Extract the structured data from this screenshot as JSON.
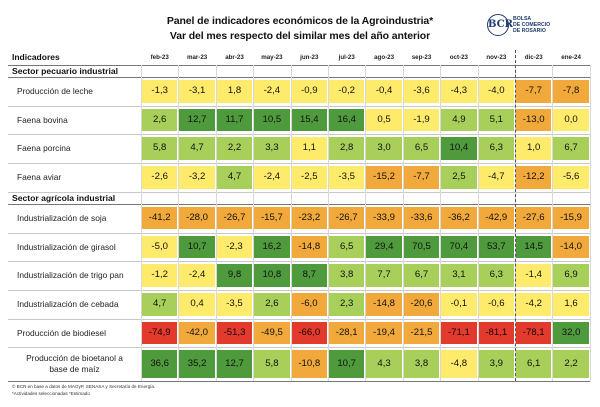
{
  "header": {
    "title_line1": "Panel de indicadores económicos de la Agroindustria*",
    "title_line2": "Var del mes respecto del similar mes del año anterior",
    "logo_seal": "BCR",
    "logo_line1": "BOLSA",
    "logo_line2": "DE COMERCIO",
    "logo_line3": "DE ROSARIO"
  },
  "chart_data": {
    "type": "table",
    "title": "Panel de indicadores económicos de la Agroindustria*",
    "subtitle": "Var del mes respecto del similar mes del año anterior",
    "column_header": "Indicadores",
    "columns": [
      "feb-23",
      "mar-23",
      "abr-23",
      "may-23",
      "jun-23",
      "jul-23",
      "ago-23",
      "sep-23",
      "oct-23",
      "nov-23",
      "dic-23",
      "ene-24"
    ],
    "sections": [
      {
        "name": "Sector pecuario industrial",
        "rows": [
          {
            "label": "Producción de leche",
            "values": [
              -1.3,
              -3.1,
              1.8,
              -2.4,
              -0.9,
              -0.2,
              -0.4,
              -3.6,
              -4.3,
              -4.0,
              -7.7,
              -7.8
            ]
          },
          {
            "label": "Faena bovina",
            "values": [
              2.6,
              12.7,
              11.7,
              10.5,
              15.4,
              16.4,
              0.5,
              -1.9,
              4.9,
              5.1,
              -13.0,
              0.0
            ]
          },
          {
            "label": "Faena porcina",
            "values": [
              5.8,
              4.7,
              2.2,
              3.3,
              1.1,
              2.8,
              3.0,
              6.5,
              10.4,
              6.3,
              1.0,
              6.7
            ]
          },
          {
            "label": "Faena aviar",
            "values": [
              -2.6,
              -3.2,
              4.7,
              -2.4,
              -2.5,
              -3.5,
              -15.2,
              -7.7,
              2.5,
              -4.7,
              -12.2,
              -5.6
            ]
          }
        ]
      },
      {
        "name": "Sector agrícola industrial",
        "rows": [
          {
            "label": "Industrialización de soja",
            "values": [
              -41.2,
              -28.0,
              -26.7,
              -15.7,
              -23.2,
              -26.7,
              -33.9,
              -33.6,
              -36.2,
              -42.9,
              -27.6,
              -15.9
            ]
          },
          {
            "label": "Industrialización de girasol",
            "values": [
              -5.0,
              10.7,
              -2.3,
              16.2,
              -14.8,
              6.5,
              29.4,
              70.5,
              70.4,
              53.7,
              14.5,
              -14.0
            ]
          },
          {
            "label": "Industrialización de trigo pan",
            "values": [
              -1.2,
              -2.4,
              9.8,
              10.8,
              8.7,
              3.8,
              7.7,
              6.7,
              3.1,
              6.3,
              -1.4,
              6.9
            ]
          },
          {
            "label": "Industrialización de cebada",
            "values": [
              4.7,
              0.4,
              -3.5,
              2.6,
              -6.0,
              2.3,
              -14.8,
              -20.6,
              -0.1,
              -0.6,
              -4.2,
              1.6
            ]
          },
          {
            "label": "Producción de biodiesel",
            "values": [
              -74.9,
              -42.0,
              -51.3,
              -49.5,
              -66.0,
              -28.1,
              -19.4,
              -21.5,
              -71.1,
              -81.1,
              -78.1,
              32.0
            ]
          },
          {
            "label": "Producción de bioetanol a base de maíz",
            "label_line1": "Producción de bioetanol a",
            "label_line2": "base de maíz",
            "values": [
              36.6,
              35.2,
              12.7,
              5.8,
              -10.8,
              10.7,
              4.3,
              3.8,
              -4.8,
              3.9,
              6.1,
              2.2
            ]
          }
        ]
      }
    ],
    "colors": {
      "strong_positive": "#4e9a3c",
      "positive": "#a8cf5a",
      "neutral": "#ffeb6b",
      "negative": "#f2a93b",
      "strong_negative": "#e23b2e"
    }
  },
  "footnotes": {
    "line1": "© BCR en base a datos de MAGyP, SENASA y Secretaría de Energía.",
    "line2": "*Actividades seleccionadas   *Estimado"
  }
}
